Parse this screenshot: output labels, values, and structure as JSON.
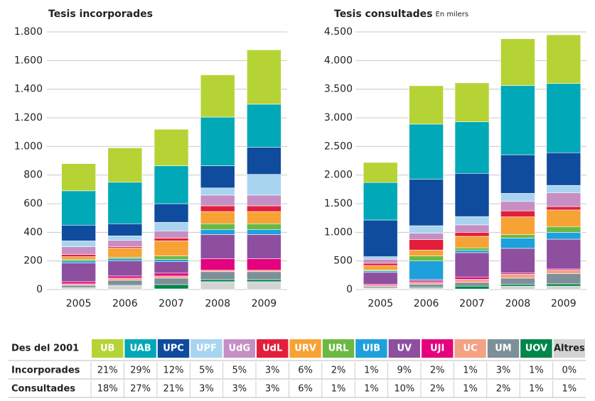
{
  "chart_data": [
    {
      "type": "bar",
      "stacked": true,
      "title": "Tesis incorporades",
      "categories": [
        "2005",
        "2006",
        "2007",
        "2008",
        "2009"
      ],
      "ylim": [
        0,
        1800
      ],
      "yticks": [
        0,
        200,
        400,
        600,
        800,
        {
          "value": 1000,
          "label": "1.000"
        },
        {
          "value": 1200,
          "label": "1.200"
        },
        {
          "value": 1400,
          "label": "1.400"
        },
        {
          "value": 1600,
          "label": "1.600"
        },
        {
          "value": 1800,
          "label": "1.800"
        }
      ],
      "grid": true,
      "series": [
        {
          "color": "#d3d3d3",
          "values": [
            10,
            25,
            5,
            55,
            55
          ]
        },
        {
          "color": "#00854a",
          "values": [
            5,
            5,
            30,
            15,
            15
          ]
        },
        {
          "color": "#7d8f99",
          "values": [
            15,
            35,
            45,
            55,
            55
          ]
        },
        {
          "color": "#f4a184",
          "values": [
            10,
            15,
            15,
            10,
            10
          ]
        },
        {
          "color": "#e5007e",
          "values": [
            15,
            15,
            20,
            80,
            80
          ]
        },
        {
          "color": "#8e4f9f",
          "values": [
            130,
            105,
            80,
            170,
            170
          ]
        },
        {
          "color": "#1ea0dc",
          "values": [
            15,
            15,
            15,
            35,
            35
          ]
        },
        {
          "color": "#6cb843",
          "values": [
            10,
            10,
            25,
            40,
            40
          ]
        },
        {
          "color": "#f7a234",
          "values": [
            20,
            65,
            105,
            85,
            85
          ]
        },
        {
          "color": "#e31e3c",
          "values": [
            15,
            10,
            20,
            40,
            40
          ]
        },
        {
          "color": "#c68fc4",
          "values": [
            55,
            45,
            50,
            75,
            75
          ]
        },
        {
          "color": "#a8d4f0",
          "values": [
            40,
            30,
            60,
            50,
            145
          ]
        },
        {
          "color": "#0f4c9e",
          "values": [
            110,
            85,
            130,
            155,
            190
          ]
        },
        {
          "color": "#00a8b8",
          "values": [
            240,
            290,
            265,
            340,
            300
          ]
        },
        {
          "color": "#b5d334",
          "values": [
            190,
            240,
            255,
            295,
            380
          ]
        }
      ]
    },
    {
      "type": "bar",
      "stacked": true,
      "title": "Tesis consultades",
      "subtitle": "En milers",
      "categories": [
        "2005",
        "2006",
        "2007",
        "2008",
        "2009"
      ],
      "ylim": [
        0,
        4500
      ],
      "yticks": [
        0,
        500,
        {
          "value": 1000,
          "label": "1.000"
        },
        {
          "value": 1500,
          "label": "1.500"
        },
        {
          "value": 2000,
          "label": "2.000"
        },
        {
          "value": 2500,
          "label": "2.500"
        },
        {
          "value": 3000,
          "label": "3.000"
        },
        {
          "value": 3500,
          "label": "3.500"
        },
        {
          "value": 4000,
          "label": "4.000"
        },
        {
          "value": 4500,
          "label": "4.500"
        }
      ],
      "grid": true,
      "series": [
        {
          "color": "#d3d3d3",
          "values": [
            20,
            25,
            10,
            60,
            60
          ]
        },
        {
          "color": "#00854a",
          "values": [
            10,
            15,
            50,
            30,
            40
          ]
        },
        {
          "color": "#7d8f99",
          "values": [
            25,
            55,
            65,
            110,
            180
          ]
        },
        {
          "color": "#f4a184",
          "values": [
            20,
            30,
            55,
            70,
            60
          ]
        },
        {
          "color": "#e5007e",
          "values": [
            20,
            25,
            40,
            20,
            20
          ]
        },
        {
          "color": "#8e4f9f",
          "values": [
            205,
            25,
            425,
            430,
            520
          ]
        },
        {
          "color": "#1ea0dc",
          "values": [
            25,
            325,
            40,
            180,
            120
          ]
        },
        {
          "color": "#6cb843",
          "values": [
            15,
            90,
            45,
            60,
            100
          ]
        },
        {
          "color": "#f7a234",
          "values": [
            80,
            100,
            200,
            310,
            290
          ]
        },
        {
          "color": "#e31e3c",
          "values": [
            40,
            185,
            70,
            105,
            60
          ]
        },
        {
          "color": "#c68fc4",
          "values": [
            70,
            110,
            130,
            165,
            240
          ]
        },
        {
          "color": "#a8d4f0",
          "values": [
            45,
            130,
            145,
            140,
            130
          ]
        },
        {
          "color": "#0f4c9e",
          "values": [
            640,
            815,
            755,
            675,
            570
          ]
        },
        {
          "color": "#00a8b8",
          "values": [
            655,
            960,
            900,
            1210,
            1210
          ]
        },
        {
          "color": "#b5d334",
          "values": [
            350,
            670,
            680,
            815,
            850
          ]
        }
      ]
    }
  ],
  "legend_table": {
    "header": "Des del 2001",
    "columns": [
      "UB",
      "UAB",
      "UPC",
      "UPF",
      "UdG",
      "UdL",
      "URV",
      "URL",
      "UIB",
      "UV",
      "UJI",
      "UC",
      "UM",
      "UOV",
      "Altres"
    ],
    "rows": [
      {
        "label": "Incorporades",
        "values": [
          "21%",
          "29%",
          "12%",
          "5%",
          "5%",
          "3%",
          "6%",
          "2%",
          "1%",
          "9%",
          "2%",
          "1%",
          "3%",
          "1%",
          "0%"
        ]
      },
      {
        "label": "Consultades",
        "values": [
          "18%",
          "27%",
          "21%",
          "3%",
          "3%",
          "3%",
          "6%",
          "1%",
          "1%",
          "10%",
          "2%",
          "1%",
          "2%",
          "1%",
          "1%"
        ]
      }
    ]
  }
}
